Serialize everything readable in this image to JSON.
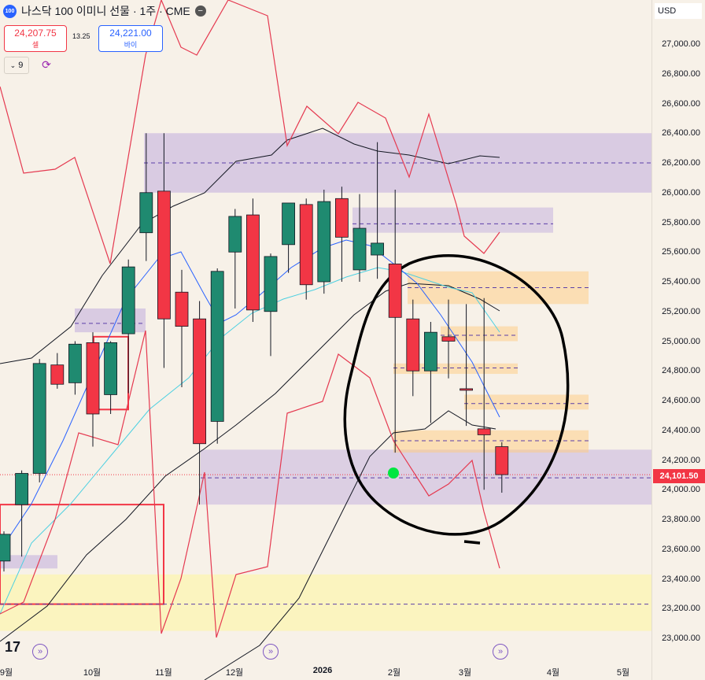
{
  "header": {
    "symbol_logo": "100",
    "title": "나스닥 100 이미니 선물 · 1주 · CME",
    "minus_icon": "minus-icon"
  },
  "trade": {
    "sell_price": "24,207.75",
    "sell_label": "셀",
    "spread": "13.25",
    "buy_price": "24,221.00",
    "buy_label": "바이"
  },
  "indicator_toggle": {
    "icon": "chevron-down-icon",
    "count": "9"
  },
  "sync_icon": "sync-icon",
  "currency": "USD",
  "last_price_label": "24,101.50",
  "tv_logo": "17",
  "colors": {
    "up": "#1f8a70",
    "down": "#f23645",
    "purple_zone": "#b39ddb",
    "yellow_zone": "#fff59d",
    "orange_zone": "#ffcc80",
    "ma_black": "#131722",
    "ma_teal": "#4dd0e1",
    "ma_blue": "#2962ff",
    "envelope": "#e53950",
    "drawing": "#000000",
    "marker": "#00e640"
  },
  "chart_data": {
    "type": "candlestick",
    "timeframe": "1주",
    "ylim": [
      22900,
      27100
    ],
    "yticks": [
      "23,000.00",
      "23,200.00",
      "23,400.00",
      "23,600.00",
      "23,800.00",
      "24,000.00",
      "24,200.00",
      "24,400.00",
      "24,600.00",
      "24,800.00",
      "25,000.00",
      "25,200.00",
      "25,400.00",
      "25,600.00",
      "25,800.00",
      "26,000.00",
      "26,200.00",
      "26,400.00",
      "26,600.00",
      "26,800.00",
      "27,000.00"
    ],
    "xticks": [
      {
        "label": "9월",
        "bold": false
      },
      {
        "label": "10월",
        "bold": false
      },
      {
        "label": "11월",
        "bold": false
      },
      {
        "label": "12월",
        "bold": false
      },
      {
        "label": "2026",
        "bold": true
      },
      {
        "label": "2월",
        "bold": false
      },
      {
        "label": "3월",
        "bold": false
      },
      {
        "label": "4월",
        "bold": false
      },
      {
        "label": "5월",
        "bold": false
      }
    ],
    "candles": [
      {
        "o": 23520,
        "h": 23720,
        "l": 23450,
        "c": 23700
      },
      {
        "o": 23900,
        "h": 24130,
        "l": 23550,
        "c": 24110
      },
      {
        "o": 24110,
        "h": 24880,
        "l": 24050,
        "c": 24850
      },
      {
        "o": 24840,
        "h": 24920,
        "l": 24680,
        "c": 24710
      },
      {
        "o": 24720,
        "h": 25000,
        "l": 24640,
        "c": 24980
      },
      {
        "o": 24990,
        "h": 25060,
        "l": 24290,
        "c": 24510
      },
      {
        "o": 24640,
        "h": 25000,
        "l": 24510,
        "c": 24990
      },
      {
        "o": 25050,
        "h": 25550,
        "l": 24650,
        "c": 25500
      },
      {
        "o": 25730,
        "h": 26400,
        "l": 25540,
        "c": 26000
      },
      {
        "o": 26010,
        "h": 26400,
        "l": 24820,
        "c": 25150
      },
      {
        "o": 25330,
        "h": 25480,
        "l": 24690,
        "c": 25100
      },
      {
        "o": 25150,
        "h": 25270,
        "l": 23900,
        "c": 24310
      },
      {
        "o": 24460,
        "h": 25490,
        "l": 24310,
        "c": 25470
      },
      {
        "o": 25600,
        "h": 25890,
        "l": 25220,
        "c": 25840
      },
      {
        "o": 25850,
        "h": 25960,
        "l": 25130,
        "c": 25210
      },
      {
        "o": 25200,
        "h": 25590,
        "l": 24900,
        "c": 25570
      },
      {
        "o": 25650,
        "h": 25930,
        "l": 25460,
        "c": 25930
      },
      {
        "o": 25920,
        "h": 25960,
        "l": 25280,
        "c": 25380
      },
      {
        "o": 25400,
        "h": 26020,
        "l": 25320,
        "c": 25940
      },
      {
        "o": 25960,
        "h": 26040,
        "l": 25400,
        "c": 25700
      },
      {
        "o": 25480,
        "h": 25990,
        "l": 25400,
        "c": 25760
      },
      {
        "o": 25580,
        "h": 26340,
        "l": 25420,
        "c": 25660
      },
      {
        "o": 25520,
        "h": 26020,
        "l": 24250,
        "c": 25160
      },
      {
        "o": 25150,
        "h": 25280,
        "l": 24630,
        "c": 24800
      },
      {
        "o": 24800,
        "h": 25130,
        "l": 24450,
        "c": 25060
      },
      {
        "o": 25030,
        "h": 25280,
        "l": 24750,
        "c": 25000
      },
      {
        "o": 24680,
        "h": 25250,
        "l": 24430,
        "c": 24670
      },
      {
        "o": 24410,
        "h": 25290,
        "l": 24000,
        "c": 24370
      },
      {
        "o": 24290,
        "h": 24320,
        "l": 23980,
        "c": 24101.5
      }
    ]
  }
}
